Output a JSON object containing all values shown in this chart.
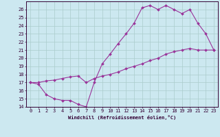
{
  "xlabel": "Windchill (Refroidissement éolien,°C)",
  "bg_color": "#cce8f0",
  "grid_color": "#aacccc",
  "line_color": "#993399",
  "xlim": [
    -0.5,
    23.5
  ],
  "ylim": [
    14,
    27
  ],
  "yticks": [
    14,
    15,
    16,
    17,
    18,
    19,
    20,
    21,
    22,
    23,
    24,
    25,
    26
  ],
  "xticks": [
    0,
    1,
    2,
    3,
    4,
    5,
    6,
    7,
    8,
    9,
    10,
    11,
    12,
    13,
    14,
    15,
    16,
    17,
    18,
    19,
    20,
    21,
    22,
    23
  ],
  "line1_x": [
    0,
    1,
    2,
    3,
    4,
    5,
    6,
    7,
    8,
    9,
    10,
    11,
    12,
    13,
    14,
    15,
    16,
    17,
    18,
    19,
    20,
    21,
    22,
    23
  ],
  "line1_y": [
    17.0,
    16.8,
    15.5,
    15.0,
    14.8,
    14.8,
    14.3,
    14.0,
    17.0,
    19.3,
    20.5,
    21.8,
    23.0,
    24.3,
    26.2,
    26.5,
    26.0,
    26.5,
    26.0,
    25.5,
    26.0,
    24.3,
    23.0,
    21.0
  ],
  "line2_x": [
    0,
    1,
    2,
    3,
    4,
    5,
    6,
    7,
    8,
    9,
    10,
    11,
    12,
    13,
    14,
    15,
    16,
    17,
    18,
    19,
    20,
    21,
    22,
    23
  ],
  "line2_y": [
    17.0,
    17.0,
    17.2,
    17.3,
    17.5,
    17.7,
    17.8,
    17.0,
    17.5,
    17.8,
    18.0,
    18.3,
    18.7,
    19.0,
    19.3,
    19.7,
    20.0,
    20.5,
    20.8,
    21.0,
    21.2,
    21.0,
    21.0,
    21.0
  ],
  "tick_fontsize": 5,
  "xlabel_fontsize": 5,
  "tick_color": "#330033",
  "spine_color": "#330033"
}
